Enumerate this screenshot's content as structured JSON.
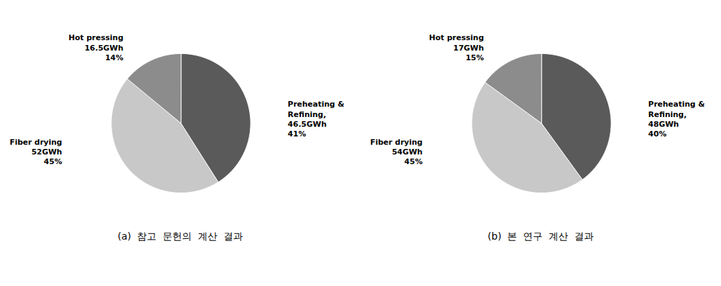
{
  "chart_data": [
    {
      "type": "pie",
      "title": "(a)  참고  문헌의  계산  결과",
      "categories": [
        "Preheating &\nRefining,",
        "Fiber drying",
        "Hot pressing"
      ],
      "energy_labels": [
        "46.5GWh",
        "52GWh",
        "16.5GWh"
      ],
      "values": [
        41,
        45,
        14
      ],
      "value_labels": [
        "41%",
        "45%",
        "14%"
      ],
      "colors": [
        "#5a5a5a",
        "#c8c8c8",
        "#8c8c8c"
      ],
      "data_labels": true
    },
    {
      "type": "pie",
      "title": "(b)  본  연구  계산  결과",
      "categories": [
        "Preheating &\nRefining,",
        "Fiber drying",
        "Hot pressing"
      ],
      "energy_labels": [
        "48GWh",
        "54GWh",
        "17GWh"
      ],
      "values": [
        40,
        45,
        15
      ],
      "value_labels": [
        "40%",
        "45%",
        "15%"
      ],
      "colors": [
        "#5a5a5a",
        "#c8c8c8",
        "#8c8c8c"
      ],
      "data_labels": true
    }
  ]
}
